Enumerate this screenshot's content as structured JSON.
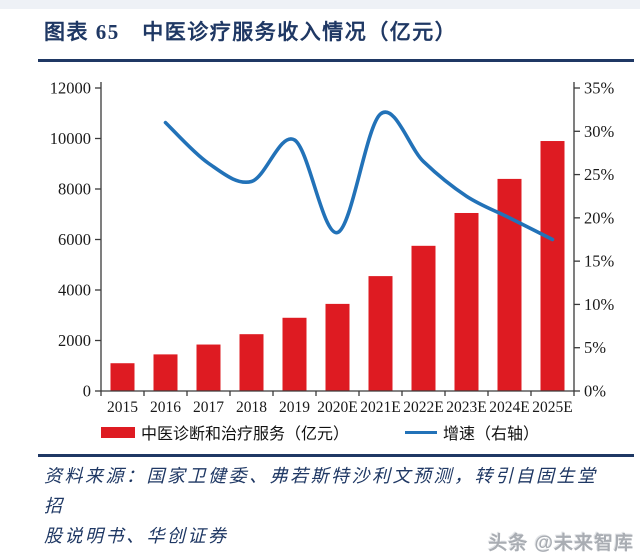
{
  "header": {
    "title": "图表 65　中医诊疗服务收入情况（亿元）"
  },
  "legend": {
    "bar_label": "中医诊断和治疗服务（亿元）",
    "line_label": "增速（右轴）"
  },
  "footer": {
    "source_line1": "资料来源：国家卫健委、弗若斯特沙利文预测，转引自固生堂招",
    "source_line2": "股说明书、华创证券",
    "watermark": "头条 @未来智库"
  },
  "colors": {
    "bar": "#de1b22",
    "line": "#2272b8",
    "navy": "#1f3864",
    "axis": "#3a3a3a",
    "tick_text": "#1a1a1a"
  },
  "chart_data": {
    "type": "bar",
    "subtype": "bar+line-combo",
    "title": "中医诊疗服务收入情况（亿元）",
    "categories": [
      "2015",
      "2016",
      "2017",
      "2018",
      "2019",
      "2020E",
      "2021E",
      "2022E",
      "2023E",
      "2024E",
      "2025E"
    ],
    "series": [
      {
        "name": "中医诊断和治疗服务（亿元）",
        "type": "bar",
        "axis": "left",
        "values": [
          1100,
          1450,
          1840,
          2250,
          2900,
          3450,
          4550,
          5750,
          7050,
          8400,
          9900
        ]
      },
      {
        "name": "增速（右轴）",
        "type": "line",
        "axis": "right",
        "values": [
          null,
          31.0,
          26.3,
          24.2,
          29.0,
          18.3,
          32.0,
          26.5,
          22.5,
          20.0,
          17.5
        ]
      }
    ],
    "left_axis": {
      "min": 0,
      "max": 12000,
      "step": 2000,
      "tick_labels": [
        "0",
        "2000",
        "4000",
        "6000",
        "8000",
        "10000",
        "12000"
      ]
    },
    "right_axis": {
      "min": 0,
      "max": 35,
      "step": 5,
      "tick_labels": [
        "0%",
        "5%",
        "10%",
        "15%",
        "20%",
        "25%",
        "30%",
        "35%"
      ]
    },
    "grid": false,
    "legend_position": "bottom",
    "line_smooth": true
  }
}
